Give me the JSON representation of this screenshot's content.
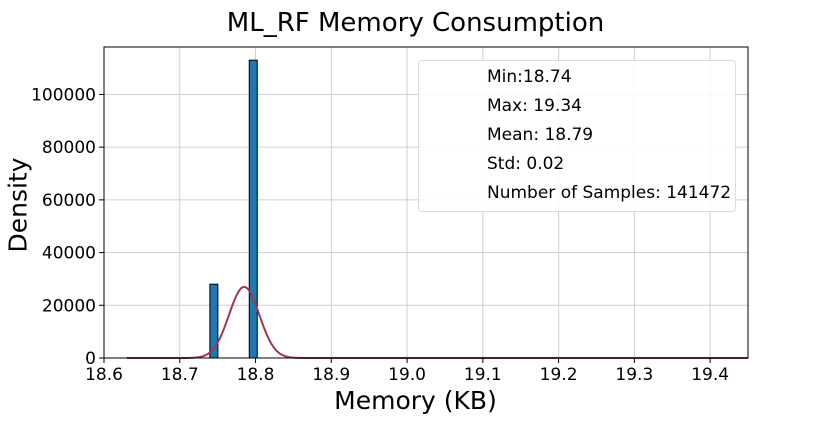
{
  "chart_data": {
    "type": "bar",
    "title": "ML_RF Memory Consumption",
    "xlabel": "Memory (KB)",
    "ylabel": "Density",
    "xlim": [
      18.6,
      19.45
    ],
    "ylim": [
      0,
      118000
    ],
    "x_ticks": [
      "18.6",
      "18.7",
      "18.8",
      "18.9",
      "19.0",
      "19.1",
      "19.2",
      "19.3",
      "19.4"
    ],
    "y_ticks": [
      "0",
      "20000",
      "40000",
      "60000",
      "80000",
      "100000"
    ],
    "grid": true,
    "bar_color": "#1f77b4",
    "bars": [
      {
        "x": 18.745,
        "value": 28000
      },
      {
        "x": 18.797,
        "value": 113000
      }
    ],
    "kde": {
      "color": "#9b3b4f",
      "peak_x": 18.785,
      "peak_value": 27000,
      "std": 0.02,
      "x_range": [
        18.63,
        19.45
      ]
    },
    "stats": {
      "min_label": "Min:18.74",
      "max_label": "Max: 19.34",
      "mean_label": "Mean: 18.79",
      "std_label": "Std: 0.02",
      "samples_label": "Number of Samples: 141472"
    },
    "legend_position": "top-right"
  }
}
